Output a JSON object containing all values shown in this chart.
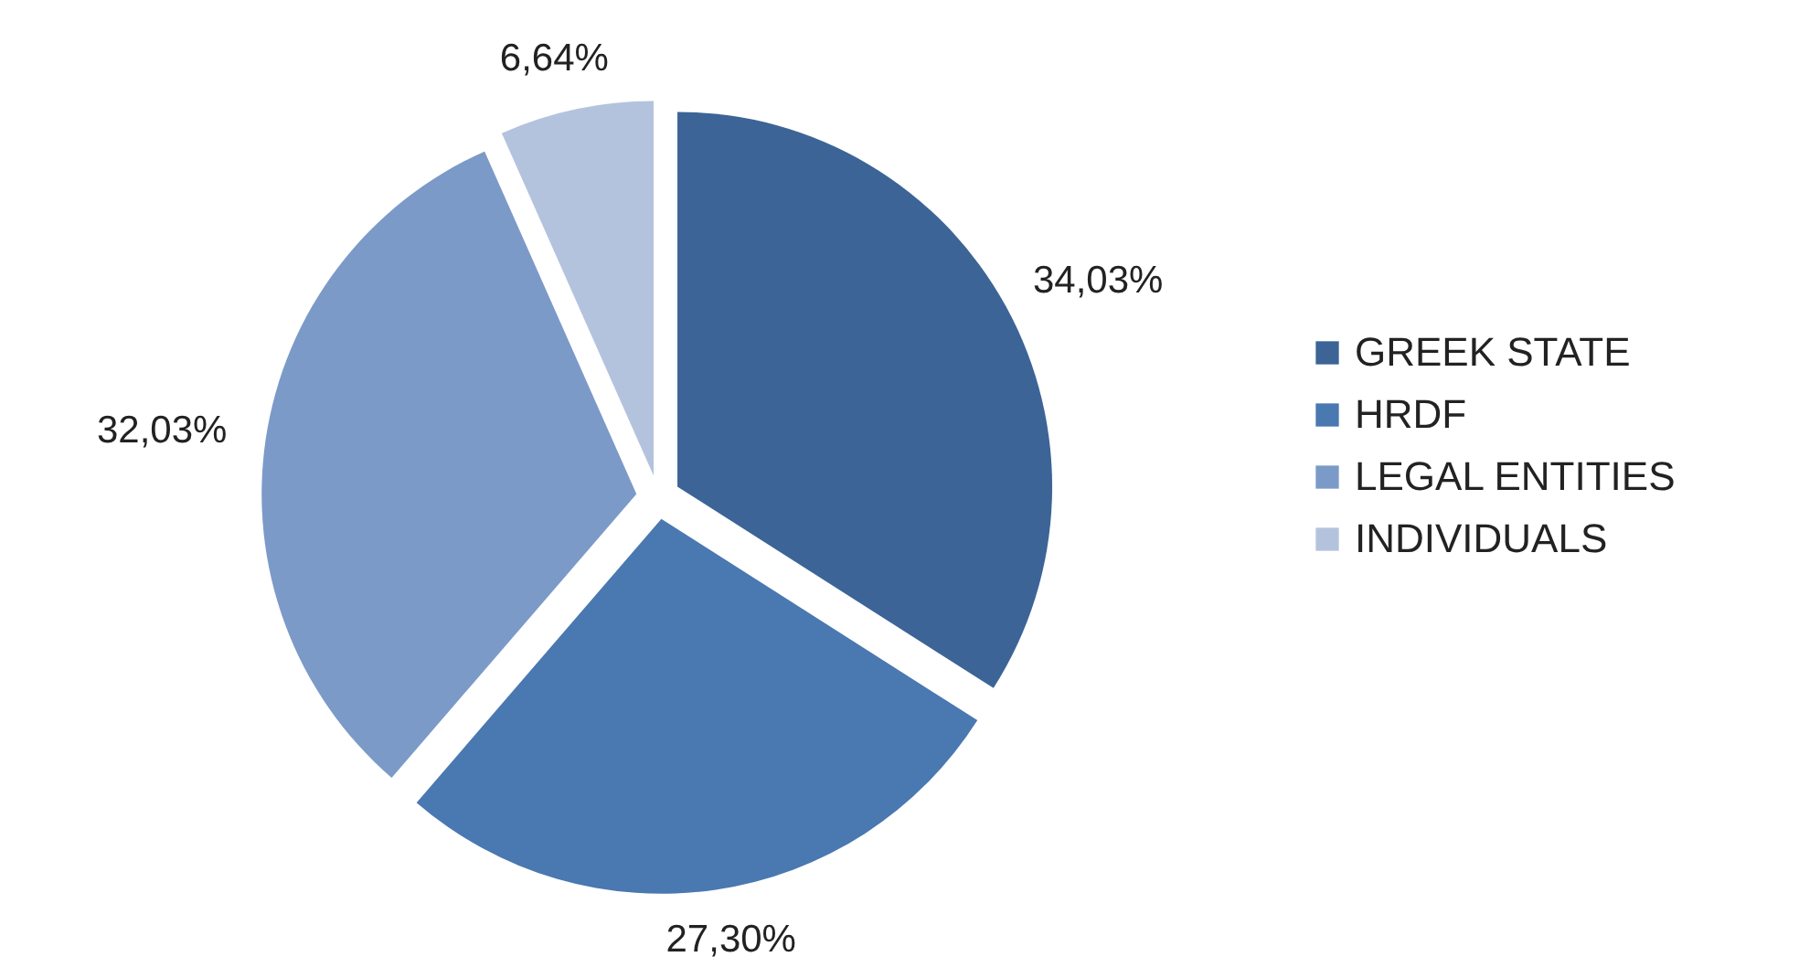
{
  "chart_data": {
    "type": "pie",
    "categories": [
      "GREEK STATE",
      "HRDF",
      "LEGAL ENTITIES",
      "INDIVIDUALS"
    ],
    "values": [
      34.03,
      27.3,
      32.03,
      6.64
    ],
    "value_labels": [
      "34,03%",
      "27,30%",
      "32,03%",
      "6,64%"
    ],
    "colors": [
      "#3c6496",
      "#4a78b0",
      "#7b9ac8",
      "#b4c3dd"
    ],
    "legend": "right"
  }
}
